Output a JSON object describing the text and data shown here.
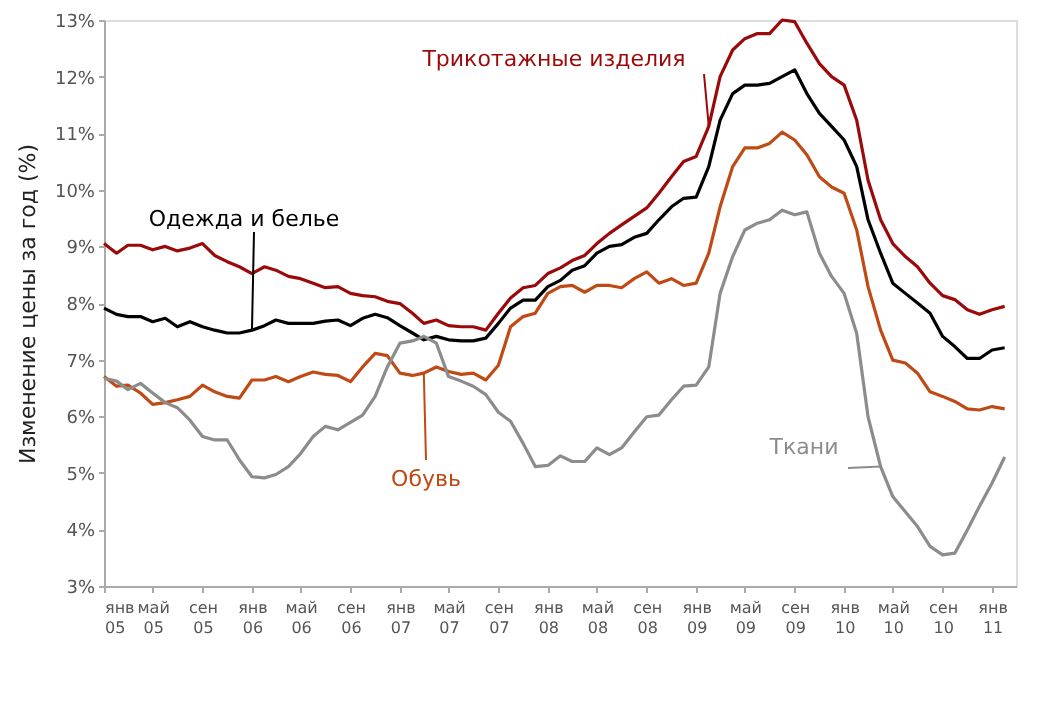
{
  "chart_data": {
    "type": "line",
    "ylabel": "Изменение цены за год (%)",
    "x": [
      "2005-01",
      "2005-02",
      "2005-03",
      "2005-04",
      "2005-05",
      "2005-06",
      "2005-07",
      "2005-08",
      "2005-09",
      "2005-10",
      "2005-11",
      "2005-12",
      "2006-01",
      "2006-02",
      "2006-03",
      "2006-04",
      "2006-05",
      "2006-06",
      "2006-07",
      "2006-08",
      "2006-09",
      "2006-10",
      "2006-11",
      "2006-12",
      "2007-01",
      "2007-02",
      "2007-03",
      "2007-04",
      "2007-05",
      "2007-06",
      "2007-07",
      "2007-08",
      "2007-09",
      "2007-10",
      "2007-11",
      "2007-12",
      "2008-01",
      "2008-02",
      "2008-03",
      "2008-04",
      "2008-05",
      "2008-06",
      "2008-07",
      "2008-08",
      "2008-09",
      "2008-10",
      "2008-11",
      "2008-12",
      "2009-01",
      "2009-02",
      "2009-03",
      "2009-04",
      "2009-05",
      "2009-06",
      "2009-07",
      "2009-08",
      "2009-09",
      "2009-10",
      "2009-11",
      "2009-12",
      "2010-01",
      "2010-02",
      "2010-03",
      "2010-04",
      "2010-05",
      "2010-06",
      "2010-07",
      "2010-08",
      "2010-09",
      "2010-10",
      "2010-11",
      "2010-12",
      "2011-01",
      "2011-02"
    ],
    "series": [
      {
        "name": "Одежда и белье",
        "color": "#000000",
        "values": [
          7.91,
          7.8,
          7.76,
          7.76,
          7.67,
          7.73,
          7.58,
          7.67,
          7.58,
          7.52,
          7.47,
          7.47,
          7.52,
          7.6,
          7.7,
          7.64,
          7.64,
          7.64,
          7.68,
          7.7,
          7.6,
          7.73,
          7.8,
          7.74,
          7.6,
          7.47,
          7.35,
          7.41,
          7.35,
          7.33,
          7.33,
          7.38,
          7.64,
          7.91,
          8.05,
          8.05,
          8.29,
          8.4,
          8.58,
          8.66,
          8.88,
          9.0,
          9.03,
          9.16,
          9.23,
          9.47,
          9.7,
          9.85,
          9.87,
          10.41,
          11.23,
          11.7,
          11.85,
          11.85,
          11.88,
          12.0,
          12.12,
          11.7,
          11.35,
          11.12,
          10.88,
          10.41,
          9.47,
          8.88,
          8.35,
          8.17,
          8.0,
          7.82,
          7.41,
          7.23,
          7.02,
          7.02,
          7.17,
          7.21
        ]
      },
      {
        "name": "Трикотажные изделия",
        "color": "#9b0a0a",
        "values": [
          9.05,
          8.88,
          9.02,
          9.02,
          8.94,
          9.0,
          8.92,
          8.97,
          9.05,
          8.84,
          8.73,
          8.64,
          8.52,
          8.64,
          8.58,
          8.47,
          8.43,
          8.35,
          8.27,
          8.29,
          8.17,
          8.13,
          8.11,
          8.03,
          7.99,
          7.82,
          7.64,
          7.7,
          7.6,
          7.58,
          7.58,
          7.52,
          7.82,
          8.09,
          8.27,
          8.31,
          8.52,
          8.62,
          8.75,
          8.84,
          9.05,
          9.23,
          9.38,
          9.53,
          9.68,
          9.94,
          10.23,
          10.5,
          10.59,
          11.12,
          12.0,
          12.47,
          12.67,
          12.76,
          12.76,
          13.0,
          12.97,
          12.59,
          12.23,
          12.0,
          11.85,
          11.23,
          10.17,
          9.47,
          9.05,
          8.82,
          8.64,
          8.35,
          8.13,
          8.06,
          7.88,
          7.8,
          7.88,
          7.94
        ]
      },
      {
        "name": "Обувь",
        "color": "#c04a14",
        "values": [
          6.7,
          6.53,
          6.55,
          6.41,
          6.21,
          6.24,
          6.29,
          6.35,
          6.55,
          6.43,
          6.35,
          6.32,
          6.64,
          6.64,
          6.7,
          6.61,
          6.7,
          6.78,
          6.74,
          6.72,
          6.61,
          6.87,
          7.11,
          7.07,
          6.76,
          6.72,
          6.76,
          6.87,
          6.79,
          6.74,
          6.76,
          6.64,
          6.9,
          7.58,
          7.76,
          7.82,
          8.17,
          8.29,
          8.31,
          8.19,
          8.31,
          8.31,
          8.27,
          8.43,
          8.55,
          8.35,
          8.43,
          8.31,
          8.35,
          8.88,
          9.7,
          10.41,
          10.74,
          10.74,
          10.82,
          11.02,
          10.88,
          10.62,
          10.23,
          10.05,
          9.94,
          9.29,
          8.29,
          7.52,
          6.99,
          6.94,
          6.76,
          6.43,
          6.35,
          6.26,
          6.13,
          6.11,
          6.17,
          6.13
        ]
      },
      {
        "name": "Ткани",
        "color": "#8c8c8c",
        "values": [
          6.67,
          6.62,
          6.47,
          6.58,
          6.41,
          6.24,
          6.15,
          5.93,
          5.64,
          5.58,
          5.58,
          5.23,
          4.93,
          4.91,
          4.97,
          5.11,
          5.34,
          5.64,
          5.82,
          5.76,
          5.89,
          6.02,
          6.35,
          6.87,
          7.29,
          7.33,
          7.41,
          7.29,
          6.7,
          6.62,
          6.53,
          6.38,
          6.07,
          5.91,
          5.52,
          5.11,
          5.13,
          5.3,
          5.2,
          5.2,
          5.44,
          5.32,
          5.44,
          5.72,
          5.99,
          6.02,
          6.29,
          6.53,
          6.55,
          6.87,
          8.17,
          8.82,
          9.29,
          9.41,
          9.47,
          9.64,
          9.56,
          9.61,
          8.88,
          8.47,
          8.17,
          7.46,
          5.99,
          5.11,
          4.58,
          4.31,
          4.05,
          3.7,
          3.55,
          3.58,
          3.99,
          4.41,
          4.82,
          5.28
        ]
      }
    ],
    "xlim": [
      "2005-01",
      "2011-03"
    ],
    "xticks": [
      {
        "value": "2005-01",
        "label": "янв\n05"
      },
      {
        "value": "2005-05",
        "label": "май\n05"
      },
      {
        "value": "2005-09",
        "label": "сен\n05"
      },
      {
        "value": "2006-01",
        "label": "янв\n06"
      },
      {
        "value": "2006-05",
        "label": "май\n06"
      },
      {
        "value": "2006-09",
        "label": "сен\n06"
      },
      {
        "value": "2007-01",
        "label": "янв\n07"
      },
      {
        "value": "2007-05",
        "label": "май\n07"
      },
      {
        "value": "2007-09",
        "label": "сен\n07"
      },
      {
        "value": "2008-01",
        "label": "янв\n08"
      },
      {
        "value": "2008-05",
        "label": "май\n08"
      },
      {
        "value": "2008-09",
        "label": "сен\n08"
      },
      {
        "value": "2009-01",
        "label": "янв\n09"
      },
      {
        "value": "2009-05",
        "label": "май\n09"
      },
      {
        "value": "2009-09",
        "label": "сен\n09"
      },
      {
        "value": "2010-01",
        "label": "янв\n10"
      },
      {
        "value": "2010-05",
        "label": "май\n10"
      },
      {
        "value": "2010-09",
        "label": "сен\n10"
      },
      {
        "value": "2011-01",
        "label": "янв\n11"
      }
    ],
    "ylim": [
      3,
      13
    ],
    "yticks": [
      {
        "value": 3,
        "label": "3%"
      },
      {
        "value": 4,
        "label": "4%"
      },
      {
        "value": 5,
        "label": "5%"
      },
      {
        "value": 6,
        "label": "6%"
      },
      {
        "value": 7,
        "label": "7%"
      },
      {
        "value": 8,
        "label": "8%"
      },
      {
        "value": 9,
        "label": "9%"
      },
      {
        "value": 10,
        "label": "10%"
      },
      {
        "value": 11,
        "label": "11%"
      },
      {
        "value": 12,
        "label": "12%"
      },
      {
        "value": 13,
        "label": "13%"
      }
    ],
    "grid": false,
    "legend": false,
    "marker": "none",
    "line_style": "solid"
  }
}
